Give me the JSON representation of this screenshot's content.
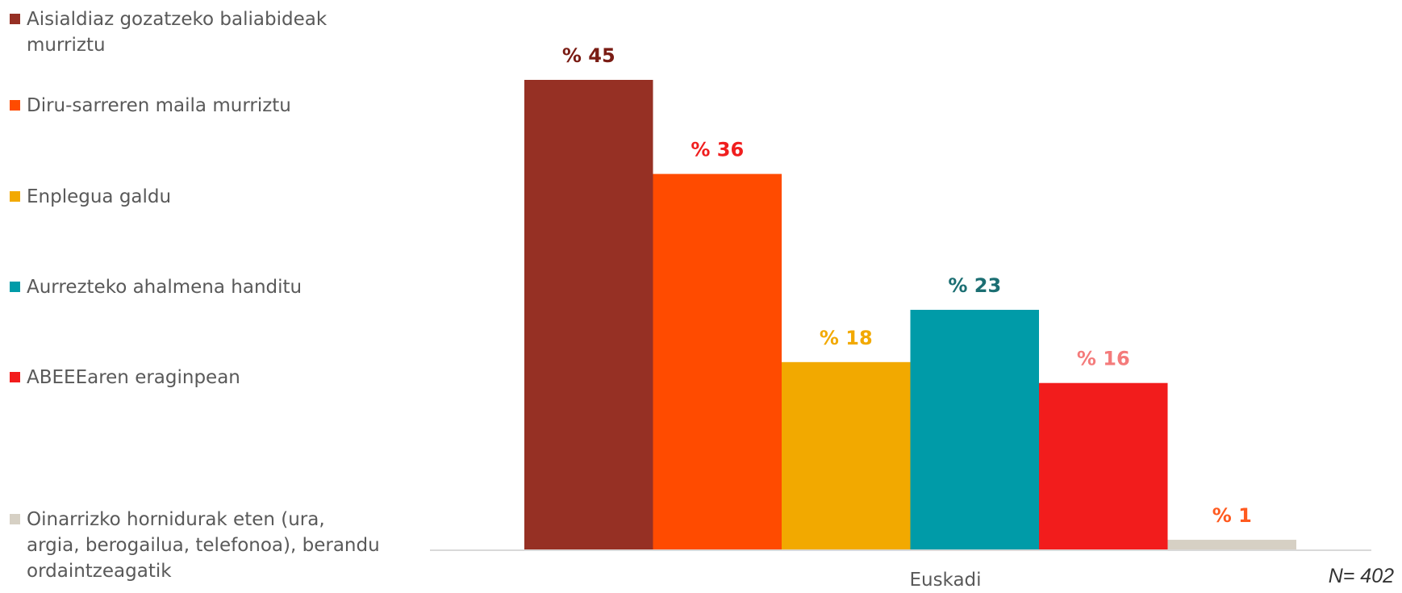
{
  "chart_data": {
    "type": "bar",
    "categories": [
      "Euskadi"
    ],
    "series": [
      {
        "name": "Aisialdiaz gozatzeko baliabideak murriztu",
        "values": [
          45
        ],
        "color": "#963024",
        "label_color": "#7A1C14",
        "data_label": "% 45"
      },
      {
        "name": "Diru-sarreren maila murriztu",
        "values": [
          36
        ],
        "color": "#FF4B00",
        "label_color": "#F01E1E",
        "data_label": "% 36"
      },
      {
        "name": "Enplegua galdu",
        "values": [
          18
        ],
        "color": "#F2A900",
        "label_color": "#F2A900",
        "data_label": "% 18"
      },
      {
        "name": "Aurrezteko ahalmena handitu",
        "values": [
          23
        ],
        "color": "#009BA8",
        "label_color": "#1B6E72",
        "data_label": "% 23"
      },
      {
        "name": "ABEEEaren eraginpean",
        "values": [
          16
        ],
        "color": "#F21C1C",
        "label_color": "#F47B7B",
        "data_label": "% 16"
      },
      {
        "name": "Oinarrizko hornidurak eten (ura, argia, berogailua, telefonoa), berandu ordaintzeagatik",
        "values": [
          1
        ],
        "color": "#D6D0C4",
        "label_color": "#FF5A1F",
        "data_label": "% 1"
      }
    ],
    "ylim": [
      0,
      50
    ],
    "grid": false,
    "legend": "left"
  },
  "note": "N= 402"
}
